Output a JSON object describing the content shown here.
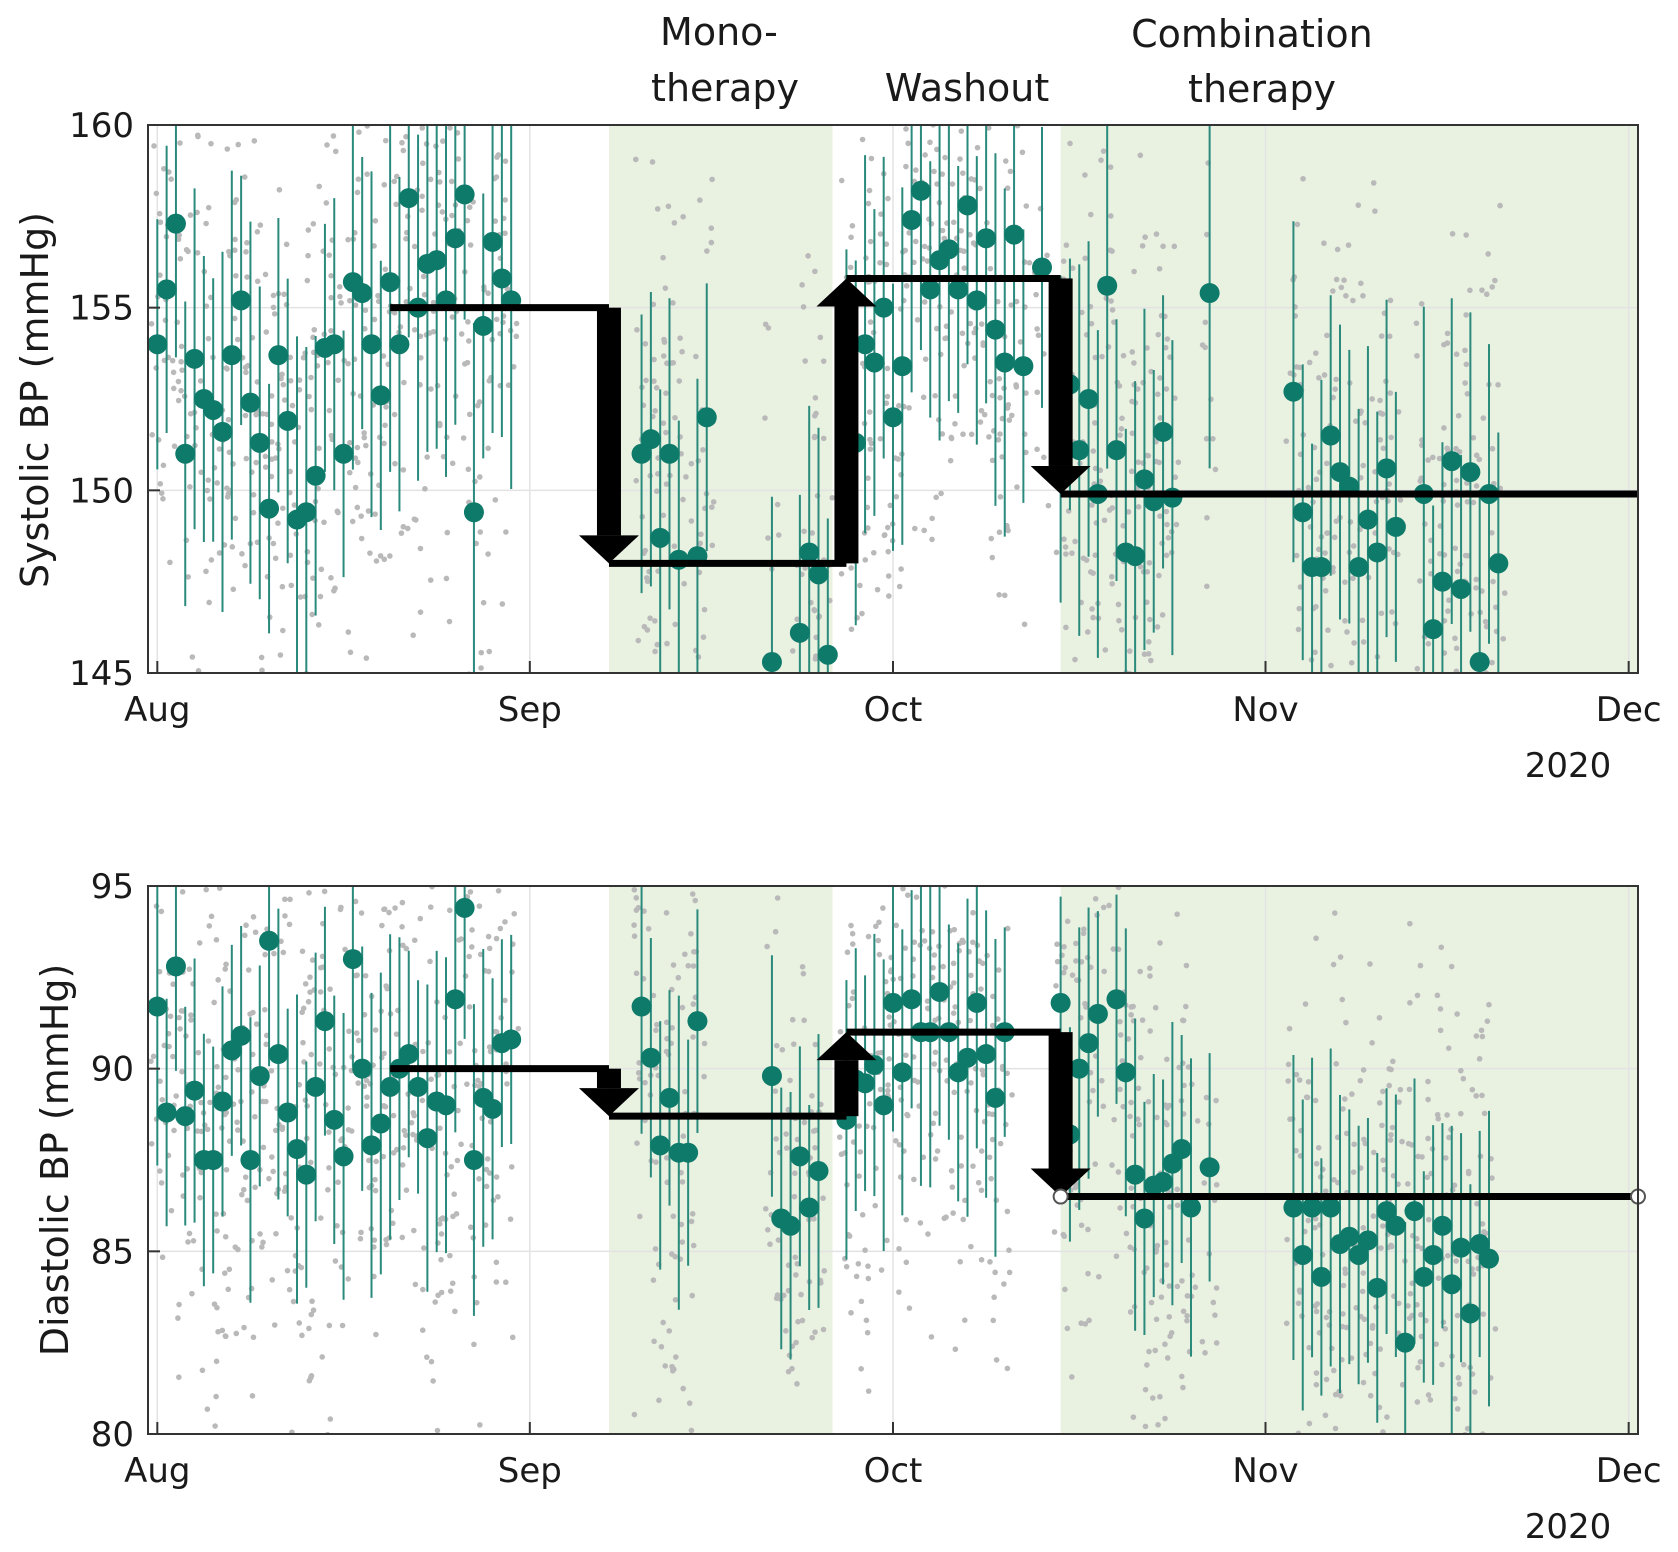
{
  "figure": {
    "phase_labels": [
      {
        "text_lines": [
          "Mono-",
          "therapy"
        ],
        "center_day": 60.5
      },
      {
        "text_lines": [
          "Washout"
        ],
        "center_day": 87
      },
      {
        "text_lines": [
          "Combination",
          "therapy"
        ],
        "center_day": 119.5
      }
    ],
    "colors": {
      "shade": "#e9f1e1",
      "mean_marker": "#0e7a6a",
      "whisker": "#2a8a7c",
      "raw_points": "#b9b9b9",
      "step_line": "#000000",
      "grid": "#e3e3e3",
      "axis": "#333333"
    }
  },
  "chart_data": [
    {
      "type": "scatter",
      "id": "systolic",
      "ylabel": "Systolic BP (mmHg)",
      "ylim": [
        145,
        160
      ],
      "yticks": [
        145,
        150,
        155,
        160
      ],
      "xlim_days": [
        -1,
        159
      ],
      "xticks": [
        {
          "label": "Aug",
          "day": 0
        },
        {
          "label": "Sep",
          "day": 40
        },
        {
          "label": "Oct",
          "day": 79
        },
        {
          "label": "Nov",
          "day": 119
        },
        {
          "label": "Dec",
          "day": 158
        }
      ],
      "year_label": "2020",
      "shaded_periods_days": [
        [
          48.5,
          72.5
        ],
        [
          97,
          159
        ]
      ],
      "period_means": [
        {
          "from_day": 25,
          "to_day": 48.5,
          "value": 155
        },
        {
          "from_day": 48.5,
          "to_day": 74,
          "value": 148
        },
        {
          "from_day": 74,
          "to_day": 97,
          "value": 155.8
        },
        {
          "from_day": 97,
          "to_day": 159,
          "value": 149.9
        }
      ],
      "daily_means": [
        [
          0,
          154
        ],
        [
          1,
          155.5
        ],
        [
          2,
          157.3
        ],
        [
          3,
          151
        ],
        [
          4,
          153.6
        ],
        [
          5,
          152.5
        ],
        [
          6,
          152.2
        ],
        [
          7,
          151.6
        ],
        [
          8,
          153.7
        ],
        [
          9,
          155.2
        ],
        [
          10,
          152.4
        ],
        [
          11,
          151.3
        ],
        [
          12,
          149.5
        ],
        [
          13,
          153.7
        ],
        [
          14,
          151.9
        ],
        [
          15,
          149.2
        ],
        [
          16,
          149.4
        ],
        [
          17,
          150.4
        ],
        [
          18,
          153.9
        ],
        [
          19,
          154
        ],
        [
          20,
          151
        ],
        [
          21,
          155.7
        ],
        [
          22,
          155.4
        ],
        [
          23,
          154
        ],
        [
          24,
          152.6
        ],
        [
          25,
          155.7
        ],
        [
          26,
          154
        ],
        [
          27,
          158
        ],
        [
          28,
          155
        ],
        [
          29,
          156.2
        ],
        [
          30,
          156.3
        ],
        [
          31,
          155.2
        ],
        [
          32,
          156.9
        ],
        [
          33,
          158.1
        ],
        [
          34,
          149.4
        ],
        [
          35,
          154.5
        ],
        [
          36,
          156.8
        ],
        [
          37,
          155.8
        ],
        [
          38,
          155.2
        ],
        [
          52,
          151
        ],
        [
          53,
          151.4
        ],
        [
          54,
          148.7
        ],
        [
          55,
          151
        ],
        [
          56,
          148.1
        ],
        [
          58,
          148.2
        ],
        [
          59,
          152
        ],
        [
          66,
          145.3
        ],
        [
          69,
          146.1
        ],
        [
          70,
          148.3
        ],
        [
          71,
          147.7
        ],
        [
          72,
          145.5
        ],
        [
          74,
          152.7
        ],
        [
          75,
          151.3
        ],
        [
          76,
          154.0
        ],
        [
          77,
          153.5
        ],
        [
          78,
          155
        ],
        [
          79,
          152
        ],
        [
          80,
          153.4
        ],
        [
          81,
          157.4
        ],
        [
          82,
          158.2
        ],
        [
          83,
          155.5
        ],
        [
          84,
          156.3
        ],
        [
          85,
          156.6
        ],
        [
          86,
          155.5
        ],
        [
          87,
          157.8
        ],
        [
          88,
          155.2
        ],
        [
          89,
          156.9
        ],
        [
          90,
          154.4
        ],
        [
          91,
          153.5
        ],
        [
          92,
          157
        ],
        [
          93,
          153.4
        ],
        [
          95,
          156.1
        ],
        [
          97,
          151.4
        ],
        [
          98,
          152.9
        ],
        [
          99,
          151.1
        ],
        [
          100,
          152.5
        ],
        [
          101,
          149.9
        ],
        [
          102,
          155.6
        ],
        [
          103,
          151.1
        ],
        [
          104,
          148.3
        ],
        [
          105,
          148.2
        ],
        [
          106,
          150.3
        ],
        [
          107,
          149.7
        ],
        [
          108,
          151.6
        ],
        [
          109,
          149.8
        ],
        [
          113,
          155.4
        ],
        [
          122,
          152.7
        ],
        [
          123,
          149.4
        ],
        [
          124,
          147.9
        ],
        [
          125,
          147.9
        ],
        [
          126,
          151.5
        ],
        [
          127,
          150.5
        ],
        [
          128,
          150.1
        ],
        [
          129,
          147.9
        ],
        [
          130,
          149.2
        ],
        [
          131,
          148.3
        ],
        [
          132,
          150.6
        ],
        [
          133,
          149
        ],
        [
          136,
          149.9
        ],
        [
          137,
          146.2
        ],
        [
          138,
          147.5
        ],
        [
          139,
          150.8
        ],
        [
          140,
          147.3
        ],
        [
          141,
          150.5
        ],
        [
          142,
          145.3
        ],
        [
          143,
          149.9
        ],
        [
          144,
          148
        ]
      ],
      "whisker_half_range": 4.2
    },
    {
      "type": "scatter",
      "id": "diastolic",
      "ylabel": "Diastolic BP (mmHg)",
      "ylim": [
        80,
        95
      ],
      "yticks": [
        80,
        85,
        90,
        95
      ],
      "xlim_days": [
        -1,
        159
      ],
      "xticks": [
        {
          "label": "Aug",
          "day": 0
        },
        {
          "label": "Sep",
          "day": 40
        },
        {
          "label": "Oct",
          "day": 79
        },
        {
          "label": "Nov",
          "day": 119
        },
        {
          "label": "Dec",
          "day": 158
        }
      ],
      "year_label": "2020",
      "shaded_periods_days": [
        [
          48.5,
          72.5
        ],
        [
          97,
          159
        ]
      ],
      "period_means": [
        {
          "from_day": 25,
          "to_day": 48.5,
          "value": 90
        },
        {
          "from_day": 48.5,
          "to_day": 74,
          "value": 88.7
        },
        {
          "from_day": 74,
          "to_day": 97,
          "value": 91
        },
        {
          "from_day": 97,
          "to_day": 159,
          "value": 86.5
        }
      ],
      "daily_means": [
        [
          0,
          91.7
        ],
        [
          1,
          88.8
        ],
        [
          2,
          92.8
        ],
        [
          3,
          88.7
        ],
        [
          4,
          89.4
        ],
        [
          5,
          87.5
        ],
        [
          6,
          87.5
        ],
        [
          7,
          89.1
        ],
        [
          8,
          90.5
        ],
        [
          9,
          90.9
        ],
        [
          10,
          87.5
        ],
        [
          11,
          89.8
        ],
        [
          12,
          93.5
        ],
        [
          13,
          90.4
        ],
        [
          14,
          88.8
        ],
        [
          15,
          87.8
        ],
        [
          16,
          87.1
        ],
        [
          17,
          89.5
        ],
        [
          18,
          91.3
        ],
        [
          19,
          88.6
        ],
        [
          20,
          87.6
        ],
        [
          21,
          93
        ],
        [
          22,
          90
        ],
        [
          23,
          87.9
        ],
        [
          24,
          88.5
        ],
        [
          25,
          89.5
        ],
        [
          26,
          90
        ],
        [
          27,
          90.4
        ],
        [
          28,
          89.5
        ],
        [
          29,
          88.1
        ],
        [
          30,
          89.1
        ],
        [
          31,
          89
        ],
        [
          32,
          91.9
        ],
        [
          33,
          94.4
        ],
        [
          34,
          87.5
        ],
        [
          35,
          89.2
        ],
        [
          36,
          88.9
        ],
        [
          37,
          90.7
        ],
        [
          38,
          90.8
        ],
        [
          52,
          91.7
        ],
        [
          53,
          90.3
        ],
        [
          54,
          87.9
        ],
        [
          55,
          89.2
        ],
        [
          56,
          87.7
        ],
        [
          57,
          87.7
        ],
        [
          58,
          91.3
        ],
        [
          66,
          89.8
        ],
        [
          67,
          85.9
        ],
        [
          68,
          85.7
        ],
        [
          69,
          87.6
        ],
        [
          70,
          86.2
        ],
        [
          71,
          87.2
        ],
        [
          74,
          88.6
        ],
        [
          75,
          89.7
        ],
        [
          76,
          89.6
        ],
        [
          77,
          90.1
        ],
        [
          78,
          89
        ],
        [
          79,
          91.8
        ],
        [
          80,
          89.9
        ],
        [
          81,
          91.9
        ],
        [
          82,
          91
        ],
        [
          83,
          91
        ],
        [
          84,
          92.1
        ],
        [
          85,
          91
        ],
        [
          86,
          89.9
        ],
        [
          87,
          90.3
        ],
        [
          88,
          91.8
        ],
        [
          89,
          90.4
        ],
        [
          90,
          89.2
        ],
        [
          91,
          91
        ],
        [
          97,
          91.8
        ],
        [
          98,
          88.2
        ],
        [
          99,
          90
        ],
        [
          100,
          90.7
        ],
        [
          101,
          91.5
        ],
        [
          103,
          91.9
        ],
        [
          104,
          89.9
        ],
        [
          105,
          87.1
        ],
        [
          106,
          85.9
        ],
        [
          107,
          86.8
        ],
        [
          108,
          86.9
        ],
        [
          109,
          87.4
        ],
        [
          110,
          87.8
        ],
        [
          111,
          86.2
        ],
        [
          113,
          87.3
        ],
        [
          122,
          86.2
        ],
        [
          123,
          84.9
        ],
        [
          124,
          86.2
        ],
        [
          125,
          84.3
        ],
        [
          126,
          86.2
        ],
        [
          127,
          85.2
        ],
        [
          128,
          85.4
        ],
        [
          129,
          84.9
        ],
        [
          130,
          85.3
        ],
        [
          131,
          84
        ],
        [
          132,
          86.1
        ],
        [
          133,
          85.7
        ],
        [
          134,
          82.5
        ],
        [
          135,
          86.1
        ],
        [
          136,
          84.3
        ],
        [
          137,
          84.9
        ],
        [
          138,
          85.7
        ],
        [
          139,
          84.1
        ],
        [
          140,
          85.1
        ],
        [
          141,
          83.3
        ],
        [
          142,
          85.2
        ],
        [
          143,
          84.8
        ]
      ],
      "whisker_half_range": 3.5
    }
  ]
}
